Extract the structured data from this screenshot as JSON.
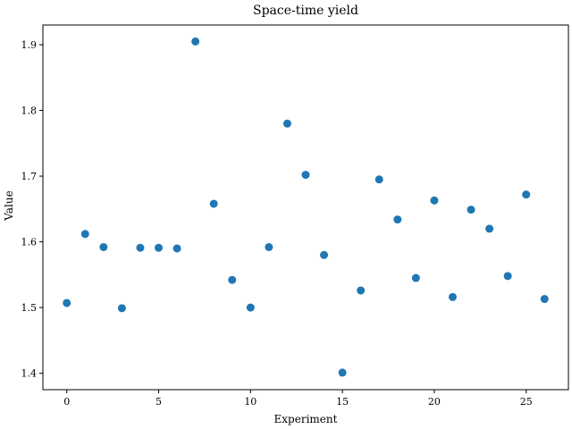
{
  "chart_data": {
    "type": "scatter",
    "title": "Space-time yield",
    "xlabel": "Experiment",
    "ylabel": "Value",
    "xlim": [
      -1.3,
      27.3
    ],
    "ylim": [
      1.375,
      1.93
    ],
    "xticks": [
      0,
      5,
      10,
      15,
      20,
      25
    ],
    "yticks": [
      1.4,
      1.5,
      1.6,
      1.7,
      1.8,
      1.9
    ],
    "ytick_labels": [
      "1.4",
      "1.5",
      "1.6",
      "1.7",
      "1.8",
      "1.9"
    ],
    "marker_color": "#1f77b4",
    "grid": false,
    "points": [
      {
        "x": 0,
        "y": 1.507
      },
      {
        "x": 1,
        "y": 1.612
      },
      {
        "x": 2,
        "y": 1.592
      },
      {
        "x": 3,
        "y": 1.499
      },
      {
        "x": 4,
        "y": 1.591
      },
      {
        "x": 5,
        "y": 1.591
      },
      {
        "x": 6,
        "y": 1.59
      },
      {
        "x": 7,
        "y": 1.905
      },
      {
        "x": 8,
        "y": 1.658
      },
      {
        "x": 9,
        "y": 1.542
      },
      {
        "x": 10,
        "y": 1.5
      },
      {
        "x": 11,
        "y": 1.592
      },
      {
        "x": 12,
        "y": 1.78
      },
      {
        "x": 13,
        "y": 1.702
      },
      {
        "x": 14,
        "y": 1.58
      },
      {
        "x": 15,
        "y": 1.401
      },
      {
        "x": 16,
        "y": 1.526
      },
      {
        "x": 17,
        "y": 1.695
      },
      {
        "x": 18,
        "y": 1.634
      },
      {
        "x": 19,
        "y": 1.545
      },
      {
        "x": 20,
        "y": 1.663
      },
      {
        "x": 21,
        "y": 1.516
      },
      {
        "x": 22,
        "y": 1.649
      },
      {
        "x": 23,
        "y": 1.62
      },
      {
        "x": 24,
        "y": 1.548
      },
      {
        "x": 25,
        "y": 1.672
      },
      {
        "x": 26,
        "y": 1.513
      }
    ]
  }
}
